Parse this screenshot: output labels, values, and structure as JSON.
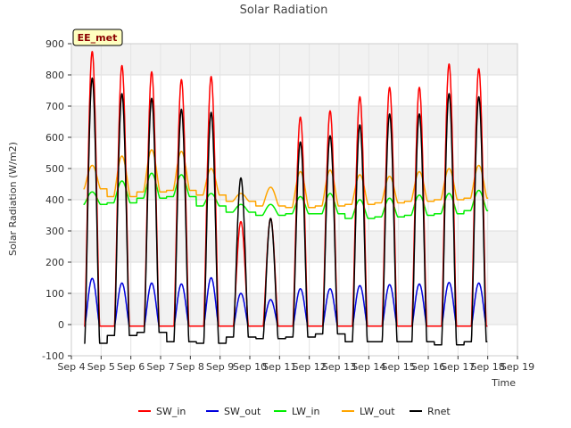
{
  "chart_data": {
    "type": "line",
    "title": "Solar Radiation",
    "xlabel": "Time",
    "ylabel": "Solar Radiation (W/m2)",
    "badge": "EE_met",
    "xlim": [
      4,
      19
    ],
    "ylim": [
      -100,
      900
    ],
    "x_ticks": [
      4,
      5,
      6,
      7,
      8,
      9,
      10,
      11,
      12,
      13,
      14,
      15,
      16,
      17,
      18,
      19
    ],
    "x_tick_labels": [
      "Sep 4",
      "Sep 5",
      "Sep 6",
      "Sep 7",
      "Sep 8",
      "Sep 9",
      "Sep 10",
      "Sep 11",
      "Sep 12",
      "Sep 13",
      "Sep 14",
      "Sep 15",
      "Sep 16",
      "Sep 17",
      "Sep 18",
      "Sep 19"
    ],
    "y_ticks": [
      -100,
      0,
      100,
      200,
      300,
      400,
      500,
      600,
      700,
      800,
      900
    ],
    "legend_position": "bottom",
    "grid": true,
    "days": [
      4.7,
      5.7,
      6.7,
      7.7,
      8.7,
      9.7,
      10.7,
      11.7,
      12.7,
      13.7,
      14.7,
      15.7,
      16.7,
      17.7
    ],
    "series": [
      {
        "name": "SW_in",
        "color": "#ff0000",
        "peaks": [
          875,
          830,
          810,
          785,
          795,
          330,
          340,
          665,
          685,
          730,
          760,
          760,
          835,
          820
        ],
        "base": -5,
        "width": 0.5
      },
      {
        "name": "SW_out",
        "color": "#0000dd",
        "peaks": [
          148,
          133,
          133,
          130,
          150,
          100,
          80,
          115,
          115,
          125,
          128,
          130,
          135,
          133
        ],
        "base": -5,
        "width": 0.5
      },
      {
        "name": "LW_in",
        "color": "#00ee00",
        "peaks": [
          425,
          460,
          485,
          480,
          420,
          385,
          385,
          410,
          420,
          400,
          405,
          415,
          420,
          430
        ],
        "base": [
          385,
          390,
          405,
          410,
          380,
          360,
          350,
          355,
          355,
          340,
          345,
          350,
          355,
          365
        ],
        "width": 0.55
      },
      {
        "name": "LW_out",
        "color": "#ffa500",
        "peaks": [
          510,
          540,
          560,
          555,
          500,
          420,
          440,
          490,
          495,
          480,
          475,
          490,
          500,
          510
        ],
        "base": [
          435,
          410,
          425,
          430,
          415,
          395,
          380,
          375,
          380,
          385,
          390,
          395,
          400,
          405
        ],
        "width": 0.55
      },
      {
        "name": "Rnet",
        "color": "#000000",
        "peaks": [
          790,
          740,
          725,
          690,
          680,
          470,
          340,
          585,
          605,
          640,
          675,
          675,
          740,
          730
        ],
        "base": [
          -60,
          -35,
          -25,
          -55,
          -60,
          -40,
          -45,
          -40,
          -30,
          -55,
          -55,
          -55,
          -65,
          -55
        ],
        "width": 0.5
      }
    ]
  }
}
